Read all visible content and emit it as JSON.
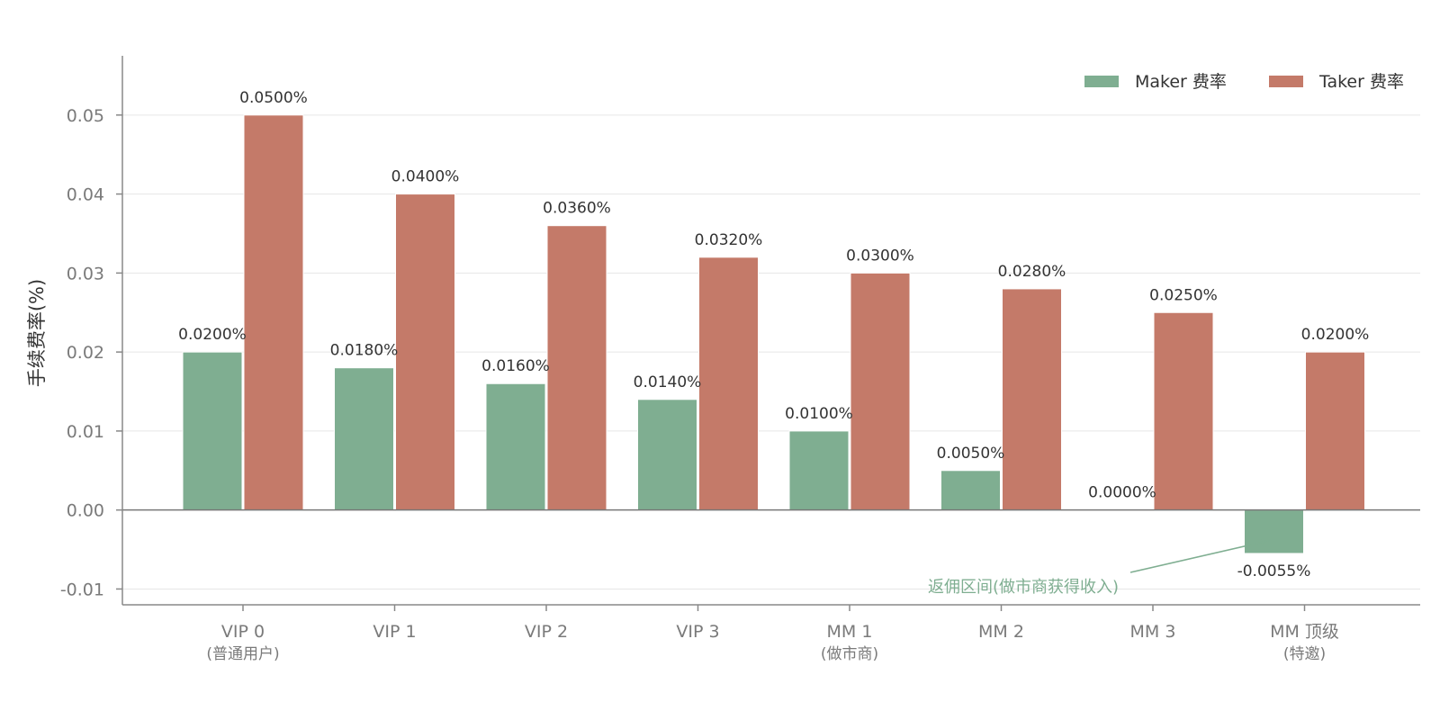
{
  "chart_data": {
    "type": "bar",
    "ylabel": "手续费率(%)",
    "ylim": [
      -0.012,
      0.0575
    ],
    "yticks": [
      -0.01,
      0.0,
      0.01,
      0.02,
      0.03,
      0.04,
      0.05
    ],
    "ytick_labels": [
      "-0.01",
      "0.00",
      "0.01",
      "0.02",
      "0.03",
      "0.04",
      "0.05"
    ],
    "grid": true,
    "legend_position": "top-right",
    "categories": [
      {
        "name": "VIP 0",
        "sub": "(普通用户)"
      },
      {
        "name": "VIP 1",
        "sub": ""
      },
      {
        "name": "VIP 2",
        "sub": ""
      },
      {
        "name": "VIP 3",
        "sub": ""
      },
      {
        "name": "MM 1",
        "sub": "(做市商)"
      },
      {
        "name": "MM 2",
        "sub": ""
      },
      {
        "name": "MM 3",
        "sub": ""
      },
      {
        "name": "MM 顶级",
        "sub": "(特邀)"
      }
    ],
    "series": [
      {
        "name": "Maker 费率",
        "color": "#7fae91",
        "values": [
          0.02,
          0.018,
          0.016,
          0.014,
          0.01,
          0.005,
          0.0,
          -0.0055
        ],
        "labels": [
          "0.0200%",
          "0.0180%",
          "0.0160%",
          "0.0140%",
          "0.0100%",
          "0.0050%",
          "0.0000%",
          "-0.0055%"
        ]
      },
      {
        "name": "Taker 费率",
        "color": "#c47a69",
        "values": [
          0.05,
          0.04,
          0.036,
          0.032,
          0.03,
          0.028,
          0.025,
          0.02
        ],
        "labels": [
          "0.0500%",
          "0.0400%",
          "0.0360%",
          "0.0320%",
          "0.0300%",
          "0.0280%",
          "0.0250%",
          "0.0200%"
        ]
      }
    ],
    "annotation": {
      "text": "返佣区间(做市商获得收入)",
      "target_category": 7,
      "target_series": 0,
      "color": "#7fae91"
    }
  }
}
